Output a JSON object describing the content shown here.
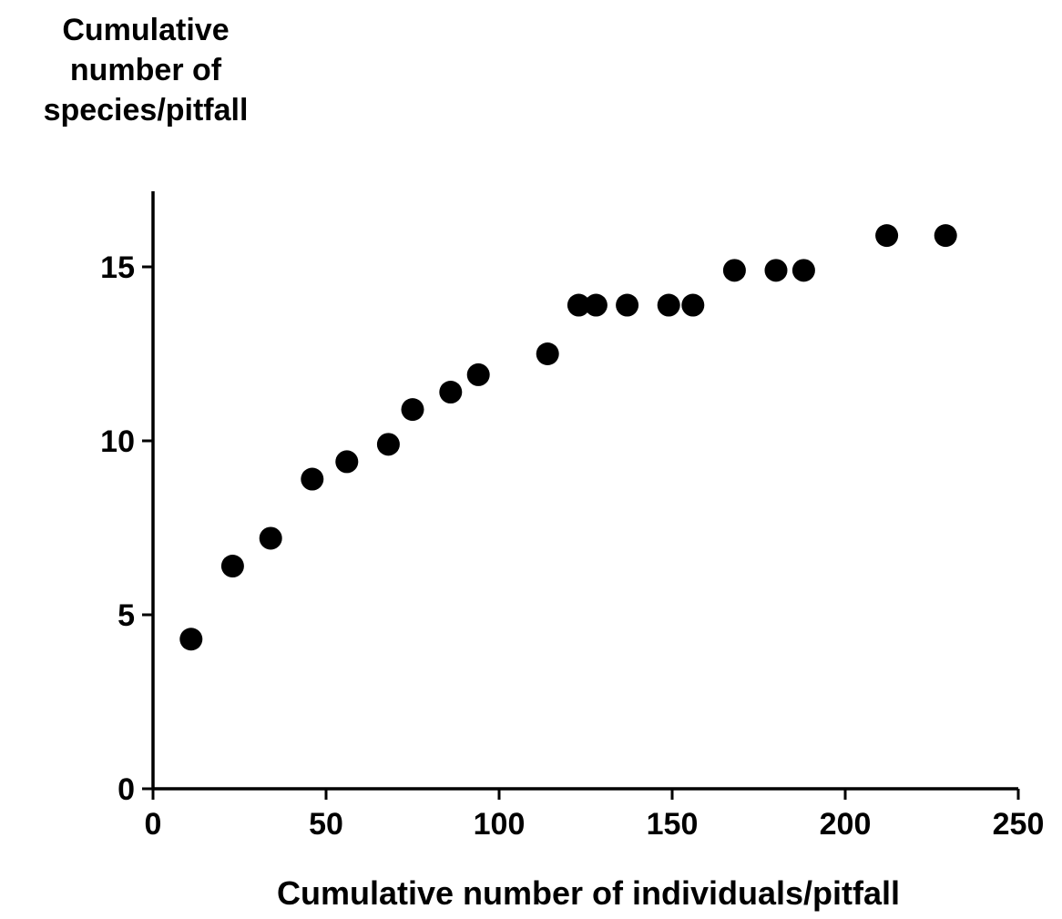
{
  "chart_data": {
    "type": "scatter",
    "ylabel_lines": [
      "Cumulative",
      "number of",
      "species/pitfall"
    ],
    "xlabel": "Cumulative number of individuals/pitfall",
    "xlim": [
      0,
      250
    ],
    "ylim": [
      0,
      17
    ],
    "x_ticks": [
      0,
      50,
      100,
      150,
      200,
      250
    ],
    "y_ticks": [
      0,
      5,
      10,
      15
    ],
    "x_tick_labels": [
      "0",
      "50",
      "100",
      "150",
      "200",
      "250"
    ],
    "y_tick_labels": [
      "0",
      "5",
      "10",
      "15"
    ],
    "grid": false,
    "points": [
      {
        "x": 11,
        "y": 4.3
      },
      {
        "x": 23,
        "y": 6.4
      },
      {
        "x": 34,
        "y": 7.2
      },
      {
        "x": 46,
        "y": 8.9
      },
      {
        "x": 56,
        "y": 9.4
      },
      {
        "x": 68,
        "y": 9.9
      },
      {
        "x": 75,
        "y": 10.9
      },
      {
        "x": 86,
        "y": 11.4
      },
      {
        "x": 94,
        "y": 11.9
      },
      {
        "x": 114,
        "y": 12.5
      },
      {
        "x": 123,
        "y": 13.9
      },
      {
        "x": 128,
        "y": 13.9
      },
      {
        "x": 137,
        "y": 13.9
      },
      {
        "x": 149,
        "y": 13.9
      },
      {
        "x": 156,
        "y": 13.9
      },
      {
        "x": 168,
        "y": 14.9
      },
      {
        "x": 180,
        "y": 14.9
      },
      {
        "x": 188,
        "y": 14.9
      },
      {
        "x": 212,
        "y": 15.9
      },
      {
        "x": 229,
        "y": 15.9
      }
    ]
  }
}
